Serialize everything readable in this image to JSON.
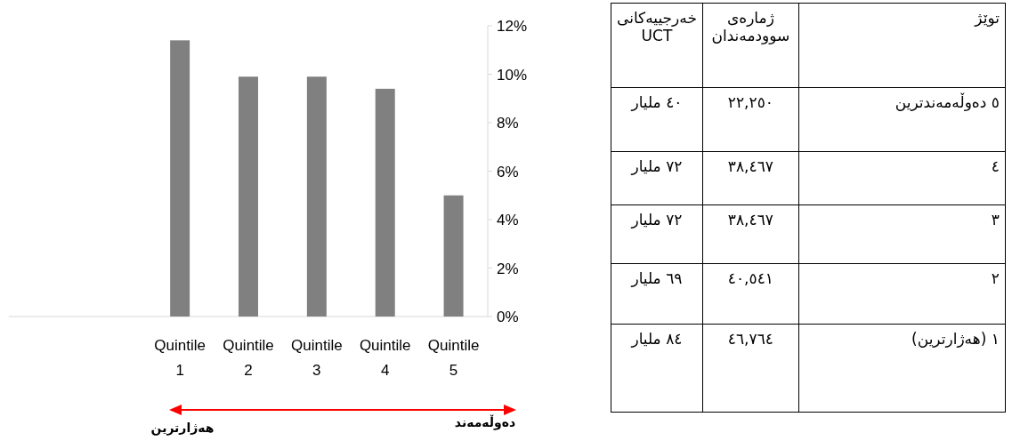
{
  "chart_data": [
    {
      "type": "bar",
      "categories": [
        null,
        null,
        "Quintile 1",
        "Quintile 2",
        "Quintile 3",
        "Quintile 4",
        "Quintile 5"
      ],
      "values": [
        null,
        null,
        11.4,
        9.9,
        9.9,
        9.4,
        5.0
      ],
      "color": "#808080",
      "ylim": [
        0,
        12
      ],
      "yticks": [
        {
          "value": 0,
          "label": "0%"
        },
        {
          "value": 2,
          "label": "2%"
        },
        {
          "value": 4,
          "label": "4%"
        },
        {
          "value": 6,
          "label": "6%"
        },
        {
          "value": 8,
          "label": "8%"
        },
        {
          "value": 10,
          "label": "10%"
        },
        {
          "value": 12,
          "label": "12%"
        }
      ],
      "annotations": [
        "هەژارترین",
        "دەوڵەمەند"
      ]
    },
    {
      "type": "other",
      "annotations": [
        "توێژ",
        "ژمارەی سوودمەندان",
        "خەرجییەکانی UCT",
        "٥ دەوڵەمەندترین",
        "٢٢,٢٥٠",
        "٤٠ مليار",
        "٤",
        "٣٨,٤٦٧",
        "٧٢ مليار",
        "٣",
        "٣٨,٤٦٧",
        "٧٢ مليار",
        "٢",
        "٤٠,٥٤١",
        "٦٩ مليار",
        "١ (هەژارترین)",
        "٤٦,٧٦٤",
        "٨٤ مليار"
      ]
    }
  ]
}
